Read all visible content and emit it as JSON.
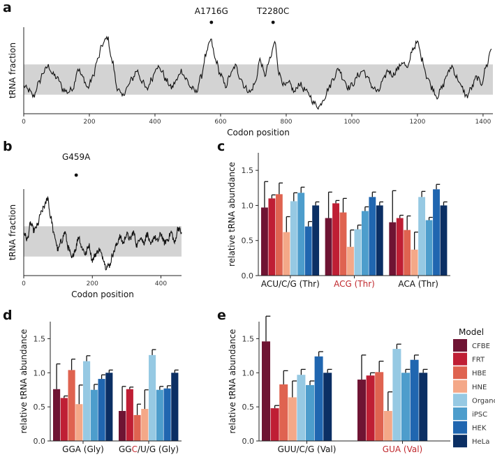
{
  "panel_labels": [
    "a",
    "b",
    "c",
    "d",
    "e"
  ],
  "colors": {
    "line": "#111111",
    "band": "#d3d3d3",
    "highlight": "#c0282d",
    "error": "#111111"
  },
  "legend": {
    "title": "Model",
    "items": [
      {
        "name": "CFBE",
        "color": "#6f1433"
      },
      {
        "name": "FRT",
        "color": "#bf1e34"
      },
      {
        "name": "HBE",
        "color": "#df6350"
      },
      {
        "name": "HNE",
        "color": "#f4a888"
      },
      {
        "name": "Organoids",
        "color": "#96c9e3"
      },
      {
        "name": "iPSC",
        "color": "#4d9dcc"
      },
      {
        "name": "HEK",
        "color": "#2066b0"
      },
      {
        "name": "HeLa",
        "color": "#0b2f64"
      }
    ]
  },
  "chart_data": [
    {
      "id": "a",
      "type": "line",
      "title": "",
      "xlabel": "Codon position",
      "ylabel": "tRNA fraction",
      "xlim": [
        0,
        1430
      ],
      "ylim": [
        0,
        1
      ],
      "xticks": [
        "0",
        "200",
        "400",
        "600",
        "800",
        "1000",
        "1200",
        "1400"
      ],
      "band": [
        0.22,
        0.57
      ],
      "anchors": [
        [
          0,
          0.32
        ],
        [
          15,
          0.27
        ],
        [
          30,
          0.2
        ],
        [
          45,
          0.35
        ],
        [
          60,
          0.48
        ],
        [
          75,
          0.55
        ],
        [
          90,
          0.45
        ],
        [
          105,
          0.4
        ],
        [
          120,
          0.28
        ],
        [
          135,
          0.25
        ],
        [
          150,
          0.3
        ],
        [
          165,
          0.52
        ],
        [
          180,
          0.42
        ],
        [
          195,
          0.3
        ],
        [
          210,
          0.42
        ],
        [
          225,
          0.62
        ],
        [
          240,
          0.8
        ],
        [
          255,
          0.88
        ],
        [
          270,
          0.6
        ],
        [
          285,
          0.3
        ],
        [
          300,
          0.2
        ],
        [
          315,
          0.3
        ],
        [
          330,
          0.4
        ],
        [
          345,
          0.5
        ],
        [
          360,
          0.38
        ],
        [
          375,
          0.28
        ],
        [
          390,
          0.4
        ],
        [
          405,
          0.55
        ],
        [
          420,
          0.5
        ],
        [
          435,
          0.38
        ],
        [
          450,
          0.3
        ],
        [
          465,
          0.38
        ],
        [
          480,
          0.5
        ],
        [
          495,
          0.4
        ],
        [
          510,
          0.3
        ],
        [
          525,
          0.25
        ],
        [
          540,
          0.42
        ],
        [
          555,
          0.68
        ],
        [
          570,
          0.85
        ],
        [
          585,
          0.62
        ],
        [
          600,
          0.45
        ],
        [
          615,
          0.32
        ],
        [
          630,
          0.45
        ],
        [
          645,
          0.55
        ],
        [
          660,
          0.42
        ],
        [
          675,
          0.3
        ],
        [
          690,
          0.25
        ],
        [
          705,
          0.35
        ],
        [
          720,
          0.62
        ],
        [
          735,
          0.45
        ],
        [
          750,
          0.62
        ],
        [
          765,
          0.82
        ],
        [
          780,
          0.45
        ],
        [
          795,
          0.32
        ],
        [
          810,
          0.35
        ],
        [
          825,
          0.25
        ],
        [
          840,
          0.35
        ],
        [
          855,
          0.28
        ],
        [
          870,
          0.22
        ],
        [
          885,
          0.12
        ],
        [
          900,
          0.08
        ],
        [
          915,
          0.18
        ],
        [
          930,
          0.3
        ],
        [
          945,
          0.42
        ],
        [
          960,
          0.52
        ],
        [
          975,
          0.4
        ],
        [
          990,
          0.3
        ],
        [
          1005,
          0.35
        ],
        [
          1020,
          0.45
        ],
        [
          1035,
          0.5
        ],
        [
          1050,
          0.4
        ],
        [
          1065,
          0.3
        ],
        [
          1080,
          0.25
        ],
        [
          1095,
          0.38
        ],
        [
          1110,
          0.5
        ],
        [
          1125,
          0.45
        ],
        [
          1140,
          0.52
        ],
        [
          1155,
          0.6
        ],
        [
          1170,
          0.52
        ],
        [
          1185,
          0.75
        ],
        [
          1200,
          0.82
        ],
        [
          1215,
          0.62
        ],
        [
          1230,
          0.42
        ],
        [
          1245,
          0.3
        ],
        [
          1260,
          0.2
        ],
        [
          1275,
          0.3
        ],
        [
          1290,
          0.45
        ],
        [
          1305,
          0.55
        ],
        [
          1320,
          0.42
        ],
        [
          1335,
          0.3
        ],
        [
          1350,
          0.2
        ],
        [
          1365,
          0.3
        ],
        [
          1380,
          0.42
        ],
        [
          1395,
          0.35
        ],
        [
          1410,
          0.55
        ],
        [
          1425,
          0.75
        ]
      ],
      "noise_amplitude": 0.035,
      "annotations": [
        {
          "label": "A1716G",
          "x": 572
        },
        {
          "label": "T2280C",
          "x": 760
        }
      ]
    },
    {
      "id": "b",
      "type": "line",
      "title": "",
      "xlabel": "Codon position",
      "ylabel": "tRNA fraction",
      "xlim": [
        0,
        460
      ],
      "ylim": [
        0,
        1
      ],
      "xticks": [
        "0",
        "200",
        "400"
      ],
      "band": [
        0.22,
        0.57
      ],
      "anchors": [
        [
          0,
          0.5
        ],
        [
          10,
          0.42
        ],
        [
          20,
          0.6
        ],
        [
          30,
          0.52
        ],
        [
          40,
          0.58
        ],
        [
          50,
          0.72
        ],
        [
          60,
          0.8
        ],
        [
          70,
          0.9
        ],
        [
          78,
          0.68
        ],
        [
          90,
          0.45
        ],
        [
          100,
          0.3
        ],
        [
          110,
          0.4
        ],
        [
          120,
          0.5
        ],
        [
          130,
          0.32
        ],
        [
          140,
          0.2
        ],
        [
          150,
          0.3
        ],
        [
          160,
          0.45
        ],
        [
          170,
          0.32
        ],
        [
          180,
          0.25
        ],
        [
          190,
          0.35
        ],
        [
          200,
          0.18
        ],
        [
          210,
          0.25
        ],
        [
          220,
          0.3
        ],
        [
          230,
          0.22
        ],
        [
          240,
          0.1
        ],
        [
          250,
          0.12
        ],
        [
          260,
          0.25
        ],
        [
          270,
          0.35
        ],
        [
          280,
          0.45
        ],
        [
          290,
          0.38
        ],
        [
          300,
          0.48
        ],
        [
          310,
          0.42
        ],
        [
          320,
          0.5
        ],
        [
          330,
          0.35
        ],
        [
          340,
          0.45
        ],
        [
          350,
          0.38
        ],
        [
          360,
          0.48
        ],
        [
          370,
          0.35
        ],
        [
          380,
          0.45
        ],
        [
          390,
          0.4
        ],
        [
          400,
          0.48
        ],
        [
          410,
          0.38
        ],
        [
          420,
          0.42
        ],
        [
          430,
          0.5
        ],
        [
          440,
          0.38
        ],
        [
          450,
          0.55
        ],
        [
          460,
          0.5
        ]
      ],
      "noise_amplitude": 0.035,
      "annotations": [
        {
          "label": "G459A",
          "x": 153
        }
      ]
    },
    {
      "id": "c",
      "type": "bar",
      "ylabel": "relative tRNA abundance",
      "ylim": [
        0,
        1.75
      ],
      "yticks": [
        "0.0",
        "0.5",
        "1.0",
        "1.5"
      ],
      "series_order": [
        "CFBE",
        "FRT",
        "HBE",
        "HNE",
        "Organoids",
        "iPSC",
        "HEK",
        "HeLa"
      ],
      "categories": [
        {
          "parts": [
            {
              "text": "ACU/C/G (Thr)",
              "hl": false
            }
          ],
          "values": [
            0.97,
            1.1,
            1.16,
            0.62,
            1.06,
            1.18,
            0.7,
            1.0
          ],
          "errors": [
            0.37,
            0.05,
            0.16,
            0.22,
            0.12,
            0.08,
            0.07,
            0.05
          ]
        },
        {
          "parts": [
            {
              "text": "ACG (Thr)",
              "hl": true
            }
          ],
          "values": [
            0.82,
            1.03,
            0.9,
            0.41,
            0.66,
            0.92,
            1.12,
            1.0
          ],
          "errors": [
            0.37,
            0.04,
            0.2,
            0.24,
            0.06,
            0.06,
            0.07,
            0.05
          ]
        },
        {
          "parts": [
            {
              "text": "ACA (Thr)",
              "hl": false
            }
          ],
          "values": [
            0.76,
            0.82,
            0.65,
            0.37,
            1.12,
            0.79,
            1.23,
            1.0
          ],
          "errors": [
            0.45,
            0.04,
            0.2,
            0.25,
            0.08,
            0.04,
            0.07,
            0.05
          ]
        }
      ]
    },
    {
      "id": "d",
      "type": "bar",
      "ylabel": "relative tRNA abundance",
      "ylim": [
        0,
        1.75
      ],
      "yticks": [
        "0.0",
        "0.5",
        "1.0",
        "1.5"
      ],
      "series_order": [
        "CFBE",
        "FRT",
        "HBE",
        "HNE",
        "Organoids",
        "iPSC",
        "HEK",
        "HeLa"
      ],
      "categories": [
        {
          "parts": [
            {
              "text": "GGA (Gly)",
              "hl": false
            }
          ],
          "values": [
            0.76,
            0.63,
            1.04,
            0.54,
            1.17,
            0.75,
            0.91,
            1.0
          ],
          "errors": [
            0.37,
            0.03,
            0.16,
            0.28,
            0.08,
            0.08,
            0.06,
            0.04
          ]
        },
        {
          "parts": [
            {
              "text": "GG",
              "hl": false
            },
            {
              "text": "C",
              "hl": true
            },
            {
              "text": "/U/G (Gly)",
              "hl": false
            }
          ],
          "values": [
            0.44,
            0.76,
            0.38,
            0.47,
            1.26,
            0.75,
            0.77,
            1.0
          ],
          "errors": [
            0.36,
            0.03,
            0.16,
            0.28,
            0.08,
            0.05,
            0.04,
            0.04
          ]
        }
      ]
    },
    {
      "id": "e",
      "type": "bar",
      "ylabel": "relative tRNA abundance",
      "ylim": [
        0,
        1.75
      ],
      "yticks": [
        "0.0",
        "0.5",
        "1.0",
        "1.5"
      ],
      "series_order": [
        "CFBE",
        "FRT",
        "HBE",
        "HNE",
        "Organoids",
        "iPSC",
        "HEK",
        "HeLa"
      ],
      "categories": [
        {
          "parts": [
            {
              "text": "GUU/C/G (Val)",
              "hl": false
            }
          ],
          "values": [
            1.46,
            0.48,
            0.83,
            0.64,
            0.97,
            0.82,
            1.24,
            1.0
          ],
          "errors": [
            0.37,
            0.04,
            0.2,
            0.24,
            0.08,
            0.06,
            0.07,
            0.05
          ]
        },
        {
          "parts": [
            {
              "text": "GUA (Val)",
              "hl": true
            }
          ],
          "values": [
            0.9,
            0.96,
            1.01,
            0.44,
            1.35,
            1.0,
            1.19,
            1.0
          ],
          "errors": [
            0.36,
            0.04,
            0.16,
            0.28,
            0.07,
            0.05,
            0.07,
            0.05
          ]
        }
      ]
    }
  ]
}
